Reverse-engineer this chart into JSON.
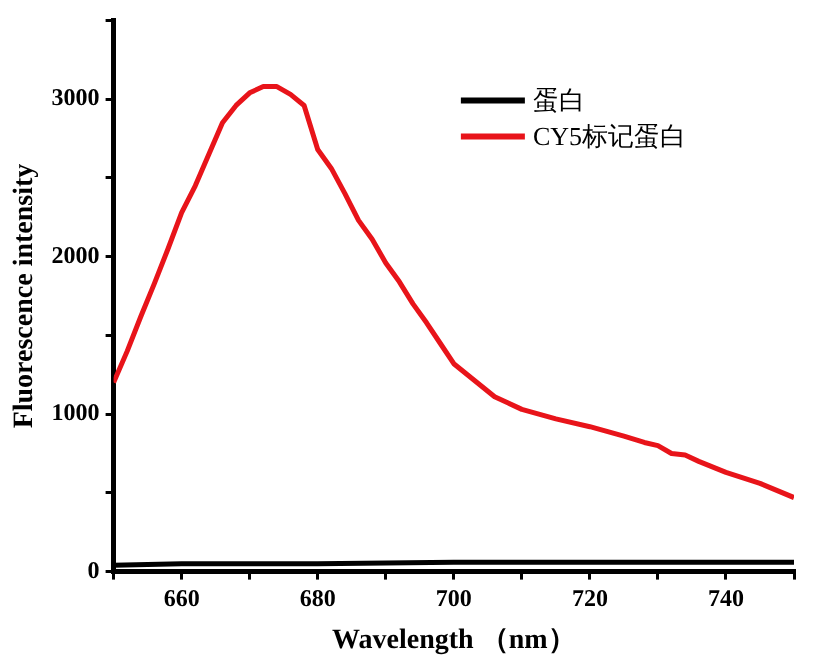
{
  "chart_data": {
    "type": "line",
    "xlabel": "Wavelength （nm）",
    "ylabel": "Fluorescence intensity",
    "xlim": [
      650,
      750
    ],
    "xticks": [
      {
        "value": 650,
        "label": null
      },
      660,
      {
        "value": 670,
        "label": null
      },
      680,
      {
        "value": 690,
        "label": null
      },
      700,
      {
        "value": 710,
        "label": null
      },
      720,
      {
        "value": 730,
        "label": null
      },
      740,
      {
        "value": 750,
        "label": null
      }
    ],
    "ylim": [
      0,
      3500
    ],
    "yticks": [
      0,
      {
        "value": 500,
        "label": null
      },
      1000,
      {
        "value": 1500,
        "label": null
      },
      2000,
      {
        "value": 2500,
        "label": null
      },
      3000,
      {
        "value": 3500,
        "label": null
      }
    ],
    "grid": false,
    "legend": "top right",
    "marker": "none",
    "line_style": "solid",
    "series": [
      {
        "name": "蛋白",
        "color": "#000000",
        "x": [
          650,
          660,
          680,
          700,
          720,
          740,
          750
        ],
        "values": [
          40,
          50,
          50,
          60,
          60,
          60,
          60
        ]
      },
      {
        "name": "CY5标记蛋白",
        "color": "#e8141a",
        "x": [
          650,
          652,
          654,
          656,
          658,
          660,
          662,
          664,
          666,
          668,
          670,
          672,
          674,
          676,
          678,
          680,
          682,
          684,
          686,
          688,
          690,
          692,
          694,
          696,
          698,
          700,
          702,
          704,
          706,
          708,
          710,
          715,
          720,
          725,
          728,
          730,
          732,
          734,
          736,
          740,
          745,
          750
        ],
        "values": [
          1200,
          1400,
          1620,
          1830,
          2050,
          2280,
          2450,
          2650,
          2850,
          2960,
          3040,
          3080,
          3080,
          3030,
          2960,
          2680,
          2560,
          2400,
          2230,
          2110,
          1960,
          1840,
          1700,
          1580,
          1450,
          1320,
          1250,
          1180,
          1110,
          1070,
          1030,
          970,
          920,
          860,
          820,
          800,
          750,
          740,
          700,
          630,
          560,
          470
        ]
      }
    ]
  }
}
